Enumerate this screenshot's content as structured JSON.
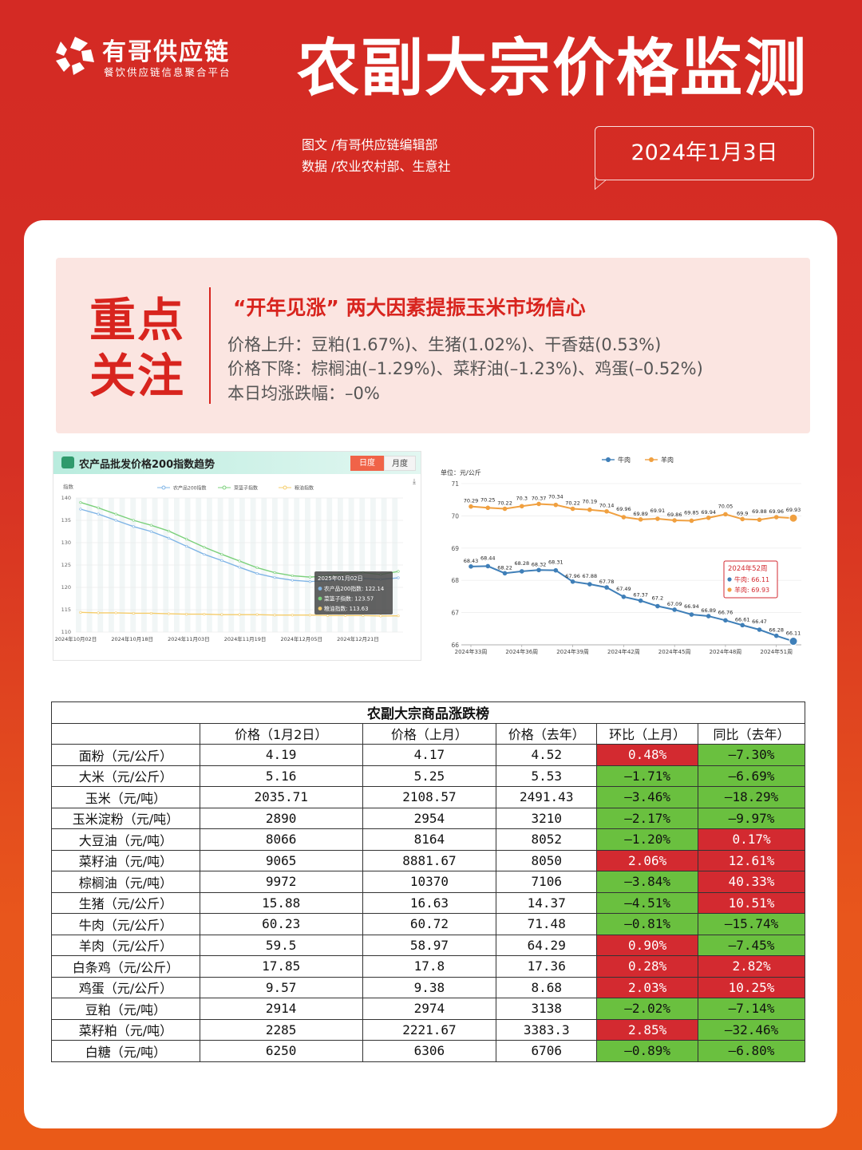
{
  "brand": {
    "name": "有哥供应链",
    "tagline": "餐饮供应链信息聚合平台"
  },
  "title": "农副大宗价格监测",
  "credits": {
    "text": "图文 /有哥供应链编辑部",
    "data": "数据 /农业农村部、生意社"
  },
  "date": "2024年1月3日",
  "focus": {
    "label": "重点关注",
    "headline": "“开年见涨” 两大因素提振玉米市场信心",
    "rise": "价格上升：豆粕(1.67%)、生猪(1.02%)、干香菇(0.53%)",
    "fall": "价格下降：棕榈油(–1.29%)、菜籽油(–1.23%)、鸡蛋(–0.52%)",
    "avg": "本日均涨跌幅：–0%"
  },
  "colors": {
    "accent": "#d8241e",
    "up": "#d32a30",
    "down": "#6ac03f"
  },
  "chart_data": [
    {
      "type": "line",
      "title": "农产品批发价格200指数趋势",
      "tabs": [
        "日度",
        "月度"
      ],
      "active_tab": "日度",
      "ylabel": "指数",
      "ylim": [
        110,
        140
      ],
      "yticks": [
        110,
        115,
        120,
        125,
        130,
        135,
        140
      ],
      "x_ticks": [
        "2024年10月02日",
        "2024年10月18日",
        "2024年11月03日",
        "2024年11月19日",
        "2024年12月05日",
        "2024年12月21日"
      ],
      "legend_placement": "top",
      "series": [
        {
          "name": "农产品200指数",
          "color": "#7fb4e6",
          "values": [
            137.5,
            136.4,
            135.0,
            133.6,
            132.5,
            131.0,
            129.2,
            127.4,
            126.0,
            124.5,
            123.1,
            122.2,
            121.6,
            121.3,
            121.5,
            121.9,
            122.0,
            121.8,
            122.14
          ]
        },
        {
          "name": "菜篮子指数",
          "color": "#7bd07b",
          "values": [
            139.0,
            137.8,
            136.4,
            135.0,
            133.9,
            132.6,
            130.8,
            129.0,
            127.4,
            125.9,
            124.4,
            123.3,
            122.6,
            122.3,
            122.6,
            123.0,
            123.3,
            122.9,
            123.57
          ]
        },
        {
          "name": "粮油指数",
          "color": "#f5cc6a",
          "values": [
            114.4,
            114.3,
            114.3,
            114.2,
            114.2,
            114.1,
            114.0,
            114.0,
            113.9,
            113.9,
            113.9,
            113.8,
            113.8,
            113.8,
            113.7,
            113.7,
            113.7,
            113.6,
            113.63
          ]
        }
      ],
      "tooltip": {
        "date": "2025年01月02日",
        "lines": [
          "农产品200指数: 122.14",
          "菜篮子指数: 123.57",
          "粮油指数: 113.63"
        ]
      }
    },
    {
      "type": "line",
      "unit": "单位：元/公斤",
      "ylim": [
        66,
        71
      ],
      "yticks": [
        66,
        67,
        68,
        69,
        70,
        71
      ],
      "x_ticks": [
        "2024年33周",
        "2024年36周",
        "2024年39周",
        "2024年42周",
        "2024年45周",
        "2024年48周",
        "2024年51周"
      ],
      "legend_placement": "top",
      "series": [
        {
          "name": "牛肉",
          "color": "#3f7fb8",
          "values": [
            68.43,
            68.44,
            68.22,
            68.28,
            68.32,
            68.31,
            67.96,
            67.88,
            67.78,
            67.49,
            67.37,
            67.2,
            67.09,
            66.94,
            66.89,
            66.76,
            66.61,
            66.47,
            66.28,
            66.11
          ]
        },
        {
          "name": "羊肉",
          "color": "#f0a040",
          "values": [
            70.29,
            70.25,
            70.22,
            70.3,
            70.37,
            70.34,
            70.22,
            70.19,
            70.14,
            69.96,
            69.89,
            69.91,
            69.86,
            69.85,
            69.94,
            70.05,
            69.9,
            69.88,
            69.96,
            69.93
          ]
        }
      ],
      "tooltip": {
        "title": "2024年52周",
        "lines": [
          "牛肉: 66.11",
          "羊肉: 69.93"
        ]
      }
    }
  ],
  "table": {
    "caption": "农副大宗商品涨跌榜",
    "headers": [
      "",
      "价格（1月2日）",
      "价格（上月）",
      "价格（去年）",
      "环比（上月）",
      "同比（去年）"
    ],
    "rows": [
      [
        "面粉（元/公斤）",
        "4.19",
        "4.17",
        "4.52",
        "0.48%",
        "–7.30%"
      ],
      [
        "大米（元/公斤）",
        "5.16",
        "5.25",
        "5.53",
        "–1.71%",
        "–6.69%"
      ],
      [
        "玉米（元/吨）",
        "2035.71",
        "2108.57",
        "2491.43",
        "–3.46%",
        "–18.29%"
      ],
      [
        "玉米淀粉（元/吨）",
        "2890",
        "2954",
        "3210",
        "–2.17%",
        "–9.97%"
      ],
      [
        "大豆油（元/吨）",
        "8066",
        "8164",
        "8052",
        "–1.20%",
        "0.17%"
      ],
      [
        "菜籽油（元/吨）",
        "9065",
        "8881.67",
        "8050",
        "2.06%",
        "12.61%"
      ],
      [
        "棕榈油（元/吨）",
        "9972",
        "10370",
        "7106",
        "–3.84%",
        "40.33%"
      ],
      [
        "生猪（元/公斤）",
        "15.88",
        "16.63",
        "14.37",
        "–4.51%",
        "10.51%"
      ],
      [
        "牛肉（元/公斤）",
        "60.23",
        "60.72",
        "71.48",
        "–0.81%",
        "–15.74%"
      ],
      [
        "羊肉（元/公斤）",
        "59.5",
        "58.97",
        "64.29",
        "0.90%",
        "–7.45%"
      ],
      [
        "白条鸡（元/公斤）",
        "17.85",
        "17.8",
        "17.36",
        "0.28%",
        "2.82%"
      ],
      [
        "鸡蛋（元/公斤）",
        "9.57",
        "9.38",
        "8.68",
        "2.03%",
        "10.25%"
      ],
      [
        "豆粕（元/吨）",
        "2914",
        "2974",
        "3138",
        "–2.02%",
        "–7.14%"
      ],
      [
        "菜籽粕（元/吨）",
        "2285",
        "2221.67",
        "3383.3",
        "2.85%",
        "–32.46%"
      ],
      [
        "白糖（元/吨）",
        "6250",
        "6306",
        "6706",
        "–0.89%",
        "–6.80%"
      ]
    ]
  }
}
